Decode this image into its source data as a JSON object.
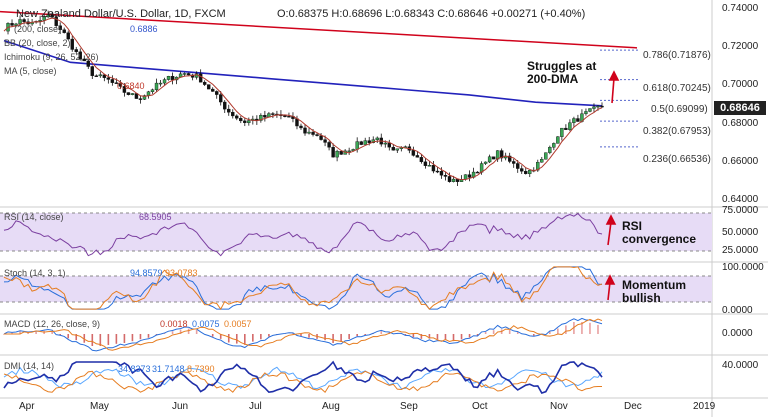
{
  "header": {
    "symbol": "New Zealand Dollar/U.S. Dollar, 1D, FXCM",
    "ohlc": "O:0.68375   H:0.68696   L:0.68343   C:0.68646   +0.00271 (+0.40%)"
  },
  "indicator_labels": {
    "sma200": "(200, close)",
    "sma200_val": "0.6886",
    "bb": "BB (20, close, 2)",
    "ichimoku": "Ichimoku (9, 26, 52, 26)",
    "ma5": "MA (5, close)",
    "ma5_val": "0.6840",
    "rsi": "RSI (14, close)",
    "rsi_val": "68.5905",
    "stoch": "Stoch (14, 3, 1)",
    "stoch_k": "94.8579",
    "stoch_d": "93.0783",
    "macd": "MACD (12, 26, close, 9)",
    "macd_a": "0.0018",
    "macd_b": "0.0075",
    "macd_c": "0.0057",
    "dmi": "DMI (14, 14)",
    "dmi_a": "34.8373",
    "dmi_b": "31.7148",
    "dmi_c": "8.7390"
  },
  "annotations": {
    "dma": [
      "Struggles at",
      "200-DMA"
    ],
    "rsi": [
      "RSI",
      "convergence"
    ],
    "momentum": [
      "Momentum",
      "bullish"
    ]
  },
  "price_box": "0.68646",
  "fib_levels": [
    {
      "label": "0.786(0.71876)",
      "value": 0.71876
    },
    {
      "label": "0.618(0.70245)",
      "value": 0.70245
    },
    {
      "label": "0.5(0.69099)",
      "value": 0.69099
    },
    {
      "label": "0.382(0.67953)",
      "value": 0.67953
    },
    {
      "label": "0.236(0.66536)",
      "value": 0.66536
    }
  ],
  "chart_data": {
    "type": "candlestick",
    "y_ticks": [
      "0.74000",
      "0.72000",
      "0.70000",
      "0.68000",
      "0.66000",
      "0.64000"
    ],
    "rsi_ticks": [
      "75.0000",
      "50.0000",
      "25.0000"
    ],
    "stoch_ticks": [
      "100.0000",
      "0.0000"
    ],
    "macd_ticks": [
      "0.0000"
    ],
    "dmi_ticks": [
      "40.0000"
    ],
    "x_ticks": [
      "Apr",
      "May",
      "Jun",
      "Jul",
      "Aug",
      "Sep",
      "Oct",
      "Nov",
      "Dec",
      "2019"
    ],
    "ylim": [
      0.636,
      0.742
    ],
    "close_path": [
      0.731,
      0.735,
      0.733,
      0.738,
      0.728,
      0.715,
      0.705,
      0.702,
      0.696,
      0.692,
      0.698,
      0.703,
      0.706,
      0.704,
      0.695,
      0.685,
      0.679,
      0.681,
      0.683,
      0.682,
      0.674,
      0.672,
      0.661,
      0.664,
      0.668,
      0.67,
      0.662,
      0.665,
      0.658,
      0.651,
      0.646,
      0.649,
      0.655,
      0.662,
      0.656,
      0.651,
      0.658,
      0.672,
      0.679,
      0.684,
      0.688
    ],
    "sma200_path": [
      0.724,
      0.712,
      0.709,
      0.706,
      0.703,
      0.7,
      0.697,
      0.694,
      0.69,
      0.688
    ],
    "trendline": [
      0.74,
      0.72
    ]
  }
}
